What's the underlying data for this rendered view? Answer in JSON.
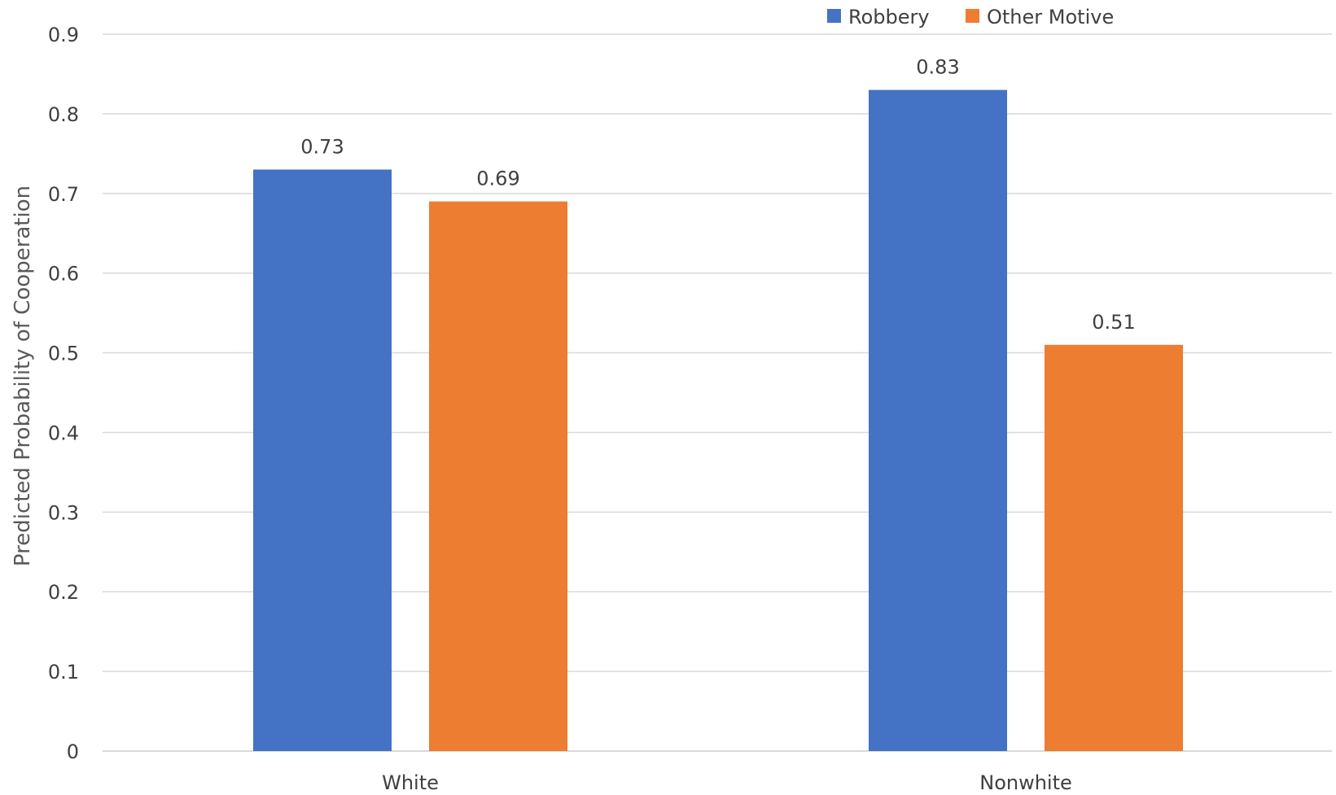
{
  "chart_data": {
    "type": "bar",
    "categories": [
      "White",
      "Nonwhite"
    ],
    "series": [
      {
        "name": "Robbery",
        "values": [
          0.73,
          0.83
        ],
        "color": "#4472C4"
      },
      {
        "name": "Other Motive",
        "values": [
          0.69,
          0.51
        ],
        "color": "#ED7D31"
      }
    ],
    "data_labels": [
      [
        "0.73",
        "0.83"
      ],
      [
        "0.69",
        "0.51"
      ]
    ],
    "title": "",
    "xlabel": "",
    "ylabel": "Predicted Probability of Cooperation",
    "ylim": [
      0,
      0.9
    ],
    "yticks": [
      "0",
      "0.1",
      "0.2",
      "0.3",
      "0.4",
      "0.5",
      "0.6",
      "0.7",
      "0.8",
      "0.9"
    ],
    "grid": true,
    "legend_position": "top-right"
  }
}
